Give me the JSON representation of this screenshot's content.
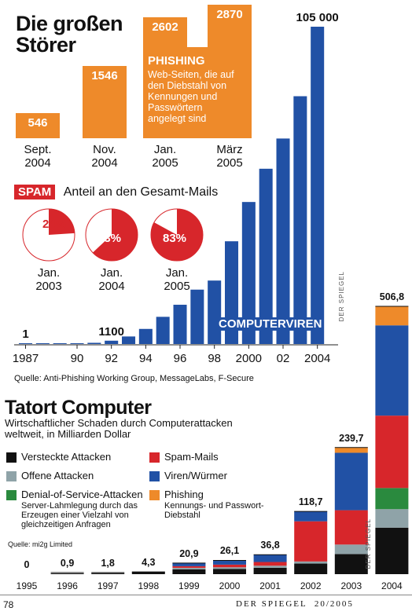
{
  "chart_data": [
    {
      "type": "bar",
      "title": "Die großen Störer",
      "phishing": {
        "label": "PHISHING",
        "description": "Web-Seiten, die auf den Diebstahl von Kennungen und Passwörtern angelegt sind",
        "categories": [
          "Sept. 2004",
          "Nov. 2004",
          "Jan. 2005",
          "März 2005"
        ],
        "value_labels": [
          "546",
          "1546",
          "2602",
          "2870"
        ],
        "values": [
          546,
          1546,
          2602,
          2870
        ]
      },
      "spam": {
        "badge": "SPAM",
        "label": "Anteil an den Gesamt-Mails",
        "categories": [
          "Jan. 2003",
          "Jan. 2004",
          "Jan. 2005"
        ],
        "value_labels": [
          "24",
          "63",
          "83"
        ],
        "values": [
          24,
          63,
          83
        ],
        "unit": "%",
        "color": "#d7262b"
      },
      "viruses": {
        "label": "COMPUTERVIREN",
        "x": [
          1987,
          1988,
          1989,
          1990,
          1991,
          1992,
          1993,
          1994,
          1995,
          1996,
          1997,
          1998,
          1999,
          2000,
          2001,
          2002,
          2003,
          2004
        ],
        "values": [
          1,
          20,
          60,
          120,
          400,
          1100,
          2500,
          5000,
          9000,
          13000,
          18000,
          21000,
          34000,
          47000,
          58000,
          68000,
          82000,
          105000
        ],
        "labels": [
          {
            "text": "1",
            "x": 1987
          },
          {
            "text": "1100",
            "x": 1992
          },
          {
            "text": "105 000",
            "x": 2004
          }
        ],
        "xticks": [
          "1987",
          "90",
          "92",
          "94",
          "96",
          "98",
          "2000",
          "02",
          "2004"
        ],
        "color": "#2151a5"
      },
      "source": "Quelle: Anti-Phishing Working Group, MessageLabs, F-Secure",
      "watermark": "DER SPIEGEL"
    },
    {
      "type": "bar",
      "stacked": true,
      "title": "Tatort Computer",
      "subtitle": "Wirtschaftlicher Schaden durch Computerattacken weltweit, in Milliarden Dollar",
      "categories": [
        "1995",
        "1996",
        "1997",
        "1998",
        "1999",
        "2000",
        "2001",
        "2002",
        "2003",
        "2004"
      ],
      "totals": [
        0,
        0.9,
        1.8,
        4.3,
        20.9,
        26.1,
        36.8,
        118.7,
        239.7,
        506.8
      ],
      "total_labels": [
        "0",
        "0,9",
        "1,8",
        "4,3",
        "20,9",
        "26,1",
        "36,8",
        "118,7",
        "239,7",
        "506,8"
      ],
      "series": [
        {
          "name": "Versteckte Attacken",
          "color": "#111111",
          "values": [
            0,
            0.9,
            1.8,
            4.3,
            9,
            10,
            12,
            20,
            38,
            88
          ]
        },
        {
          "name": "Offene Attacken",
          "color": "#8fa3a8",
          "values": [
            0,
            0,
            0,
            0,
            3,
            3,
            4,
            4,
            18,
            35
          ]
        },
        {
          "name": "Denial-of-Service-Attacken",
          "note": "Server-Lahmlegung durch das Erzeugen einer Vielzahl von gleichzeitigen Anfragen",
          "color": "#2a8a3e",
          "values": [
            0,
            0,
            0,
            0,
            0,
            0,
            0,
            0,
            0,
            40
          ]
        },
        {
          "name": "Spam-Mails",
          "color": "#d7262b",
          "values": [
            0,
            0,
            0,
            0,
            3,
            5,
            7,
            76,
            65,
            137
          ]
        },
        {
          "name": "Viren/Würmer",
          "color": "#2151a5",
          "values": [
            0,
            0,
            0,
            0,
            5.9,
            8.1,
            13.8,
            18.7,
            108.7,
            170.8
          ]
        },
        {
          "name": "Phishing",
          "note": "Kennungs- und Passwort-Diebstahl",
          "color": "#ee8a2a",
          "values": [
            0,
            0,
            0,
            0,
            0,
            0,
            0,
            0,
            10,
            36
          ]
        }
      ],
      "source": "Quelle: mi2g Limited",
      "watermark": "DER SPIEGEL"
    }
  ],
  "footer": {
    "page": "78",
    "magazine": "DER SPIEGEL  20/2005"
  }
}
